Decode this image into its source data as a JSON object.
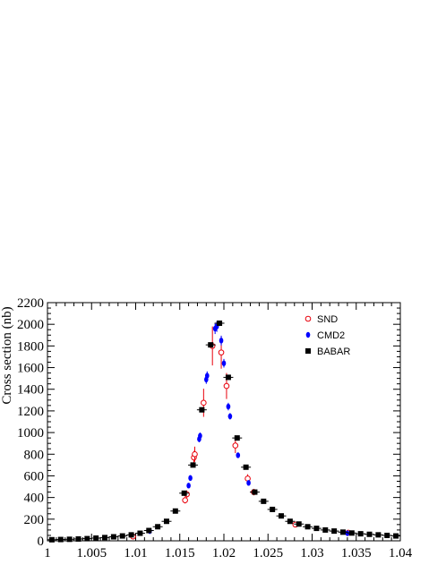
{
  "chart_data": {
    "type": "scatter",
    "title": "",
    "xlabel": "",
    "ylabel": "Cross section (nb)",
    "xlim": [
      1.0,
      1.04
    ],
    "ylim": [
      0,
      2200
    ],
    "x_ticks": [
      1,
      1.005,
      1.01,
      1.015,
      1.02,
      1.025,
      1.03,
      1.035,
      1.04
    ],
    "x_tick_labels": [
      "1",
      "1.005",
      "1.01",
      "1.015",
      "1.02",
      "1.025",
      "1.03",
      "1.035",
      "1.04"
    ],
    "y_ticks": [
      0,
      200,
      400,
      600,
      800,
      1000,
      1200,
      1400,
      1600,
      1800,
      2000,
      2200
    ],
    "y_tick_labels": [
      "0",
      "200",
      "400",
      "600",
      "800",
      "1000",
      "1200",
      "1400",
      "1600",
      "1800",
      "2000",
      "2200"
    ],
    "grid": false,
    "legend_position": "top-right",
    "series": [
      {
        "name": "SND",
        "marker": "open-circle",
        "color": "#e8000b",
        "points": [
          {
            "x": 1.0097,
            "y": 40,
            "err": 15
          },
          {
            "x": 1.0156,
            "y": 375,
            "err": 30
          },
          {
            "x": 1.0158,
            "y": 430,
            "err": 35
          },
          {
            "x": 1.0166,
            "y": 770,
            "err": 60
          },
          {
            "x": 1.0167,
            "y": 800,
            "err": 70
          },
          {
            "x": 1.0177,
            "y": 1275,
            "err": 130
          },
          {
            "x": 1.0187,
            "y": 1800,
            "err": 180
          },
          {
            "x": 1.0197,
            "y": 1740,
            "err": 150
          },
          {
            "x": 1.0203,
            "y": 1430,
            "err": 120
          },
          {
            "x": 1.0213,
            "y": 880,
            "err": 70
          },
          {
            "x": 1.0227,
            "y": 575,
            "err": 40
          },
          {
            "x": 1.0234,
            "y": 450,
            "err": 30
          },
          {
            "x": 1.0281,
            "y": 150,
            "err": 15
          },
          {
            "x": 1.0341,
            "y": 75,
            "err": 10
          }
        ]
      },
      {
        "name": "CMD2",
        "marker": "filled-circle",
        "color": "#0000ff",
        "points": [
          {
            "x": 1.0116,
            "y": 90,
            "err": 10
          },
          {
            "x": 1.016,
            "y": 510,
            "err": 20
          },
          {
            "x": 1.0162,
            "y": 580,
            "err": 25
          },
          {
            "x": 1.0172,
            "y": 940,
            "err": 30
          },
          {
            "x": 1.0173,
            "y": 970,
            "err": 30
          },
          {
            "x": 1.018,
            "y": 1490,
            "err": 40
          },
          {
            "x": 1.0181,
            "y": 1525,
            "err": 40
          },
          {
            "x": 1.019,
            "y": 1960,
            "err": 50
          },
          {
            "x": 1.0192,
            "y": 1980,
            "err": 50
          },
          {
            "x": 1.0197,
            "y": 1850,
            "err": 45
          },
          {
            "x": 1.02,
            "y": 1640,
            "err": 40
          },
          {
            "x": 1.0205,
            "y": 1240,
            "err": 35
          },
          {
            "x": 1.0207,
            "y": 1150,
            "err": 30
          },
          {
            "x": 1.0216,
            "y": 790,
            "err": 25
          },
          {
            "x": 1.0228,
            "y": 535,
            "err": 20
          },
          {
            "x": 1.034,
            "y": 70,
            "err": 8
          }
        ]
      },
      {
        "name": "BABAR",
        "marker": "filled-square",
        "color": "#000000",
        "points": [
          {
            "x": 1.0005,
            "y": 10
          },
          {
            "x": 1.0015,
            "y": 12
          },
          {
            "x": 1.0025,
            "y": 14
          },
          {
            "x": 1.0035,
            "y": 17
          },
          {
            "x": 1.0045,
            "y": 20
          },
          {
            "x": 1.0055,
            "y": 25
          },
          {
            "x": 1.0065,
            "y": 30
          },
          {
            "x": 1.0075,
            "y": 37
          },
          {
            "x": 1.0085,
            "y": 45
          },
          {
            "x": 1.0095,
            "y": 55
          },
          {
            "x": 1.0105,
            "y": 70
          },
          {
            "x": 1.0115,
            "y": 95
          },
          {
            "x": 1.0125,
            "y": 130
          },
          {
            "x": 1.0135,
            "y": 180
          },
          {
            "x": 1.0145,
            "y": 275
          },
          {
            "x": 1.0155,
            "y": 440
          },
          {
            "x": 1.0165,
            "y": 700
          },
          {
            "x": 1.0175,
            "y": 1210
          },
          {
            "x": 1.0185,
            "y": 1810
          },
          {
            "x": 1.0195,
            "y": 2010
          },
          {
            "x": 1.0205,
            "y": 1510
          },
          {
            "x": 1.0215,
            "y": 950
          },
          {
            "x": 1.0225,
            "y": 680
          },
          {
            "x": 1.0235,
            "y": 450
          },
          {
            "x": 1.0245,
            "y": 365
          },
          {
            "x": 1.0255,
            "y": 290
          },
          {
            "x": 1.0265,
            "y": 230
          },
          {
            "x": 1.0275,
            "y": 180
          },
          {
            "x": 1.0285,
            "y": 155
          },
          {
            "x": 1.0295,
            "y": 130
          },
          {
            "x": 1.0305,
            "y": 115
          },
          {
            "x": 1.0315,
            "y": 100
          },
          {
            "x": 1.0325,
            "y": 90
          },
          {
            "x": 1.0335,
            "y": 80
          },
          {
            "x": 1.0345,
            "y": 72
          },
          {
            "x": 1.0355,
            "y": 65
          },
          {
            "x": 1.0365,
            "y": 60
          },
          {
            "x": 1.0375,
            "y": 55
          },
          {
            "x": 1.0385,
            "y": 50
          },
          {
            "x": 1.0395,
            "y": 45
          }
        ]
      }
    ]
  }
}
